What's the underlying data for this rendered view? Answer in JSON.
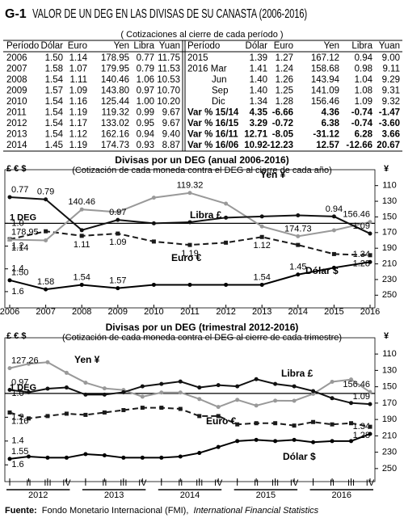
{
  "header": {
    "code": "G-1",
    "title": "VALOR DE UN DEG EN LAS DIVISAS DE SU CANASTA (2006-2016)",
    "subtitle": "( Cotizaciones al cierre de cada período )"
  },
  "table": {
    "columns": [
      "Período",
      "Dólar",
      "Euro",
      "Yen",
      "Libra",
      "Yuan"
    ],
    "left_rows": [
      [
        "2006",
        "1.50",
        "1.14",
        "178.95",
        "0.77",
        "11.75"
      ],
      [
        "2007",
        "1.58",
        "1.07",
        "179.95",
        "0.79",
        "11.53"
      ],
      [
        "2008",
        "1.54",
        "1.11",
        "140.46",
        "1.06",
        "10.53"
      ],
      [
        "2009",
        "1.57",
        "1.09",
        "143.80",
        "0.97",
        "10.70"
      ],
      [
        "2010",
        "1.54",
        "1.16",
        "125.44",
        "1.00",
        "10.20"
      ],
      [
        "2011",
        "1.54",
        "1.19",
        "119.32",
        "0.99",
        "9.67"
      ],
      [
        "2012",
        "1.54",
        "1.17",
        "133.02",
        "0.95",
        "9.67"
      ],
      [
        "2013",
        "1.54",
        "1.12",
        "162.16",
        "0.94",
        "9.40"
      ],
      [
        "2014",
        "1.45",
        "1.19",
        "174.73",
        "0.93",
        "8.87"
      ]
    ],
    "right_rows": [
      [
        "2015",
        "1.39",
        "1.27",
        "167.12",
        "0.94",
        "9.00"
      ],
      [
        "2016 Mar",
        "1.41",
        "1.24",
        "158.68",
        "0.98",
        "9.11"
      ],
      [
        "Jun",
        "1.40",
        "1.26",
        "143.94",
        "1.04",
        "9.29"
      ],
      [
        "Sep",
        "1.40",
        "1.25",
        "141.09",
        "1.08",
        "9.31"
      ],
      [
        "Dic",
        "1.34",
        "1.28",
        "156.46",
        "1.09",
        "9.32"
      ],
      [
        "Var % 15/14",
        "4.35",
        "-6.66",
        "4.36",
        "-0.74",
        "-1.47"
      ],
      [
        "Var % 16/15",
        "3.29",
        "-0.72",
        "6.38",
        "-0.74",
        "-3.60"
      ],
      [
        "Var % 16/11",
        "12.71",
        "-8.05",
        "-31.12",
        "6.28",
        "3.66"
      ],
      [
        "Var % 16/06",
        "10.92",
        "-12.23",
        "12.57",
        "-12.66",
        "20.67"
      ]
    ]
  },
  "chart_data": [
    {
      "type": "line",
      "title": "Divisas por un DEG (anual 2006-2016)",
      "subtitle": "(Cotización de cada moneda contra el DEG al cierre de cada año)",
      "y_label": "£ € $",
      "y2_label": "¥",
      "categories": [
        "2006",
        "2007",
        "2008",
        "2009",
        "2010",
        "2011",
        "2012",
        "2013",
        "2014",
        "2015",
        "2016"
      ],
      "ylim": [
        0.6,
        1.7
      ],
      "y_inverted": true,
      "yticks": [
        {
          "value": 1,
          "label": "1.0"
        },
        1.2,
        1.4,
        1.6
      ],
      "y2lim": [
        100,
        260
      ],
      "y2_inverted": true,
      "y2ticks": [
        110,
        130,
        150,
        170,
        190,
        210,
        230,
        250
      ],
      "reference": {
        "label": "1 DEG",
        "value": 1
      },
      "series": [
        {
          "name": "Dólar $",
          "color": "#000000",
          "values": [
            1.5,
            1.58,
            1.54,
            1.57,
            1.54,
            1.54,
            1.54,
            1.54,
            1.45,
            1.39,
            1.34
          ],
          "value_labels": [
            "1.50",
            "1.58",
            "1.54",
            "1.57",
            null,
            null,
            null,
            "1.54",
            "1.45",
            null,
            "1.34"
          ]
        },
        {
          "name": "Euro €",
          "color": "#1a1a1a",
          "dash": true,
          "values": [
            1.14,
            1.07,
            1.11,
            1.09,
            1.16,
            1.19,
            1.17,
            1.12,
            1.19,
            1.27,
            1.28
          ],
          "value_labels": [
            "1.14",
            null,
            "1.11",
            "1.09",
            null,
            "1.19",
            null,
            "1.12",
            null,
            null,
            "1.28"
          ]
        },
        {
          "name": "Yen ¥",
          "color": "#999999",
          "axis": "y2",
          "values": [
            178.95,
            179.95,
            140.46,
            143.8,
            125.44,
            119.32,
            133.02,
            162.16,
            174.73,
            167.12,
            156.46
          ],
          "value_labels": [
            "178.95",
            null,
            "140.46",
            null,
            null,
            "119.32",
            null,
            null,
            "174.73",
            null,
            "156.46"
          ]
        },
        {
          "name": "Libra £",
          "color": "#111111",
          "values": [
            0.77,
            0.79,
            1.06,
            0.97,
            1.0,
            0.99,
            0.95,
            0.94,
            0.93,
            0.94,
            1.09
          ],
          "value_labels": [
            "0.77",
            "0.79",
            null,
            "0.97",
            null,
            null,
            null,
            null,
            null,
            "0.94",
            "1.09"
          ]
        }
      ]
    },
    {
      "type": "line",
      "title": "Divisas por un DEG (trimestral 2012-2016)",
      "subtitle": "(Cotización de cada moneda contra el DEG al cierre de cada trimestre)",
      "y_label": "£ € $",
      "y2_label": "¥",
      "categories": [
        "I",
        "II",
        "III",
        "IV",
        "I",
        "II",
        "III",
        "IV",
        "I",
        "II",
        "III",
        "IV",
        "I",
        "II",
        "III",
        "IV",
        "I",
        "II",
        "III",
        "IV"
      ],
      "category_groups": [
        "2012",
        "2013",
        "2014",
        "2015",
        "2016"
      ],
      "ylim": [
        0.6,
        1.7
      ],
      "y_inverted": true,
      "yticks": [
        {
          "value": 1,
          "label": "1.0"
        },
        1.2,
        1.4,
        1.6
      ],
      "y2lim": [
        100,
        260
      ],
      "y2_inverted": true,
      "y2ticks": [
        110,
        130,
        150,
        170,
        190,
        210,
        230,
        250
      ],
      "reference": {
        "label": "1 DEG",
        "value": 1
      },
      "series": [
        {
          "name": "Dólar $",
          "color": "#000000",
          "values": [
            1.55,
            1.53,
            1.54,
            1.54,
            1.51,
            1.52,
            1.54,
            1.54,
            1.54,
            1.53,
            1.5,
            1.45,
            1.4,
            1.39,
            1.4,
            1.39,
            1.41,
            1.4,
            1.4,
            1.34
          ],
          "value_labels": [
            "1.55",
            null,
            null,
            null,
            null,
            null,
            null,
            null,
            null,
            null,
            null,
            null,
            null,
            null,
            null,
            null,
            null,
            null,
            null,
            "1.34"
          ]
        },
        {
          "name": "Euro €",
          "color": "#1a1a1a",
          "dash": true,
          "values": [
            1.16,
            1.21,
            1.19,
            1.17,
            1.18,
            1.16,
            1.14,
            1.12,
            1.12,
            1.13,
            1.19,
            1.19,
            1.26,
            1.25,
            1.25,
            1.27,
            1.24,
            1.26,
            1.25,
            1.28
          ],
          "value_labels": [
            "1.16",
            null,
            null,
            null,
            null,
            null,
            null,
            null,
            null,
            null,
            null,
            null,
            null,
            null,
            null,
            null,
            null,
            null,
            null,
            "1.28"
          ]
        },
        {
          "name": "Yen ¥",
          "color": "#999999",
          "axis": "y2",
          "values": [
            127.26,
            122,
            120,
            133.02,
            145,
            152,
            154,
            162.16,
            157,
            157,
            165,
            174.73,
            166,
            173,
            167,
            167.12,
            158.68,
            143.94,
            141.09,
            156.46
          ],
          "value_labels": [
            "127.26",
            null,
            null,
            null,
            null,
            null,
            null,
            null,
            null,
            null,
            null,
            null,
            null,
            null,
            null,
            null,
            null,
            null,
            null,
            "156.46"
          ]
        },
        {
          "name": "Libra £",
          "color": "#111111",
          "values": [
            0.97,
            0.99,
            0.96,
            0.95,
            1.01,
            1.01,
            0.99,
            0.94,
            0.92,
            0.9,
            0.95,
            0.93,
            0.94,
            0.88,
            0.92,
            0.94,
            0.98,
            1.04,
            1.08,
            1.09
          ],
          "value_labels": [
            "0.97",
            null,
            null,
            null,
            null,
            null,
            null,
            null,
            null,
            null,
            null,
            null,
            null,
            null,
            null,
            null,
            null,
            null,
            null,
            "1.09"
          ]
        }
      ]
    }
  ],
  "source": {
    "label": "Fuente:",
    "text": "Fondo Monetario Internacional (FMI),",
    "italic": "International Financial Statistics"
  }
}
